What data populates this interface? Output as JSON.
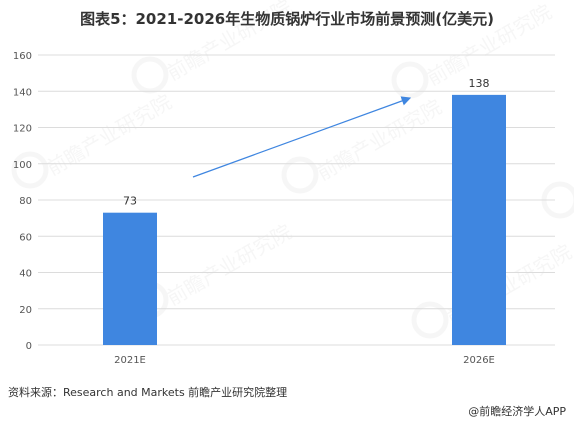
{
  "title": "图表5：2021-2026年生物质锅炉行业市场前景预测(亿美元)",
  "source": "资料来源：Research and Markets 前瞻产业研究院整理",
  "credit": "@前瞻经济学人APP",
  "watermark": "前瞻产业研究院",
  "colors": {
    "bar": "#3f86e0",
    "arrow": "#3f86e0"
  },
  "chart_data": {
    "type": "bar",
    "categories": [
      "2021E",
      "2026E"
    ],
    "values": [
      73,
      138
    ],
    "title": "图表5：2021-2026年生物质锅炉行业市场前景预测(亿美元)",
    "xlabel": "",
    "ylabel": "",
    "ylim": [
      0,
      160
    ],
    "yticks": [
      0,
      20,
      40,
      60,
      80,
      100,
      120,
      140,
      160
    ],
    "grid": true,
    "legend": "none"
  }
}
